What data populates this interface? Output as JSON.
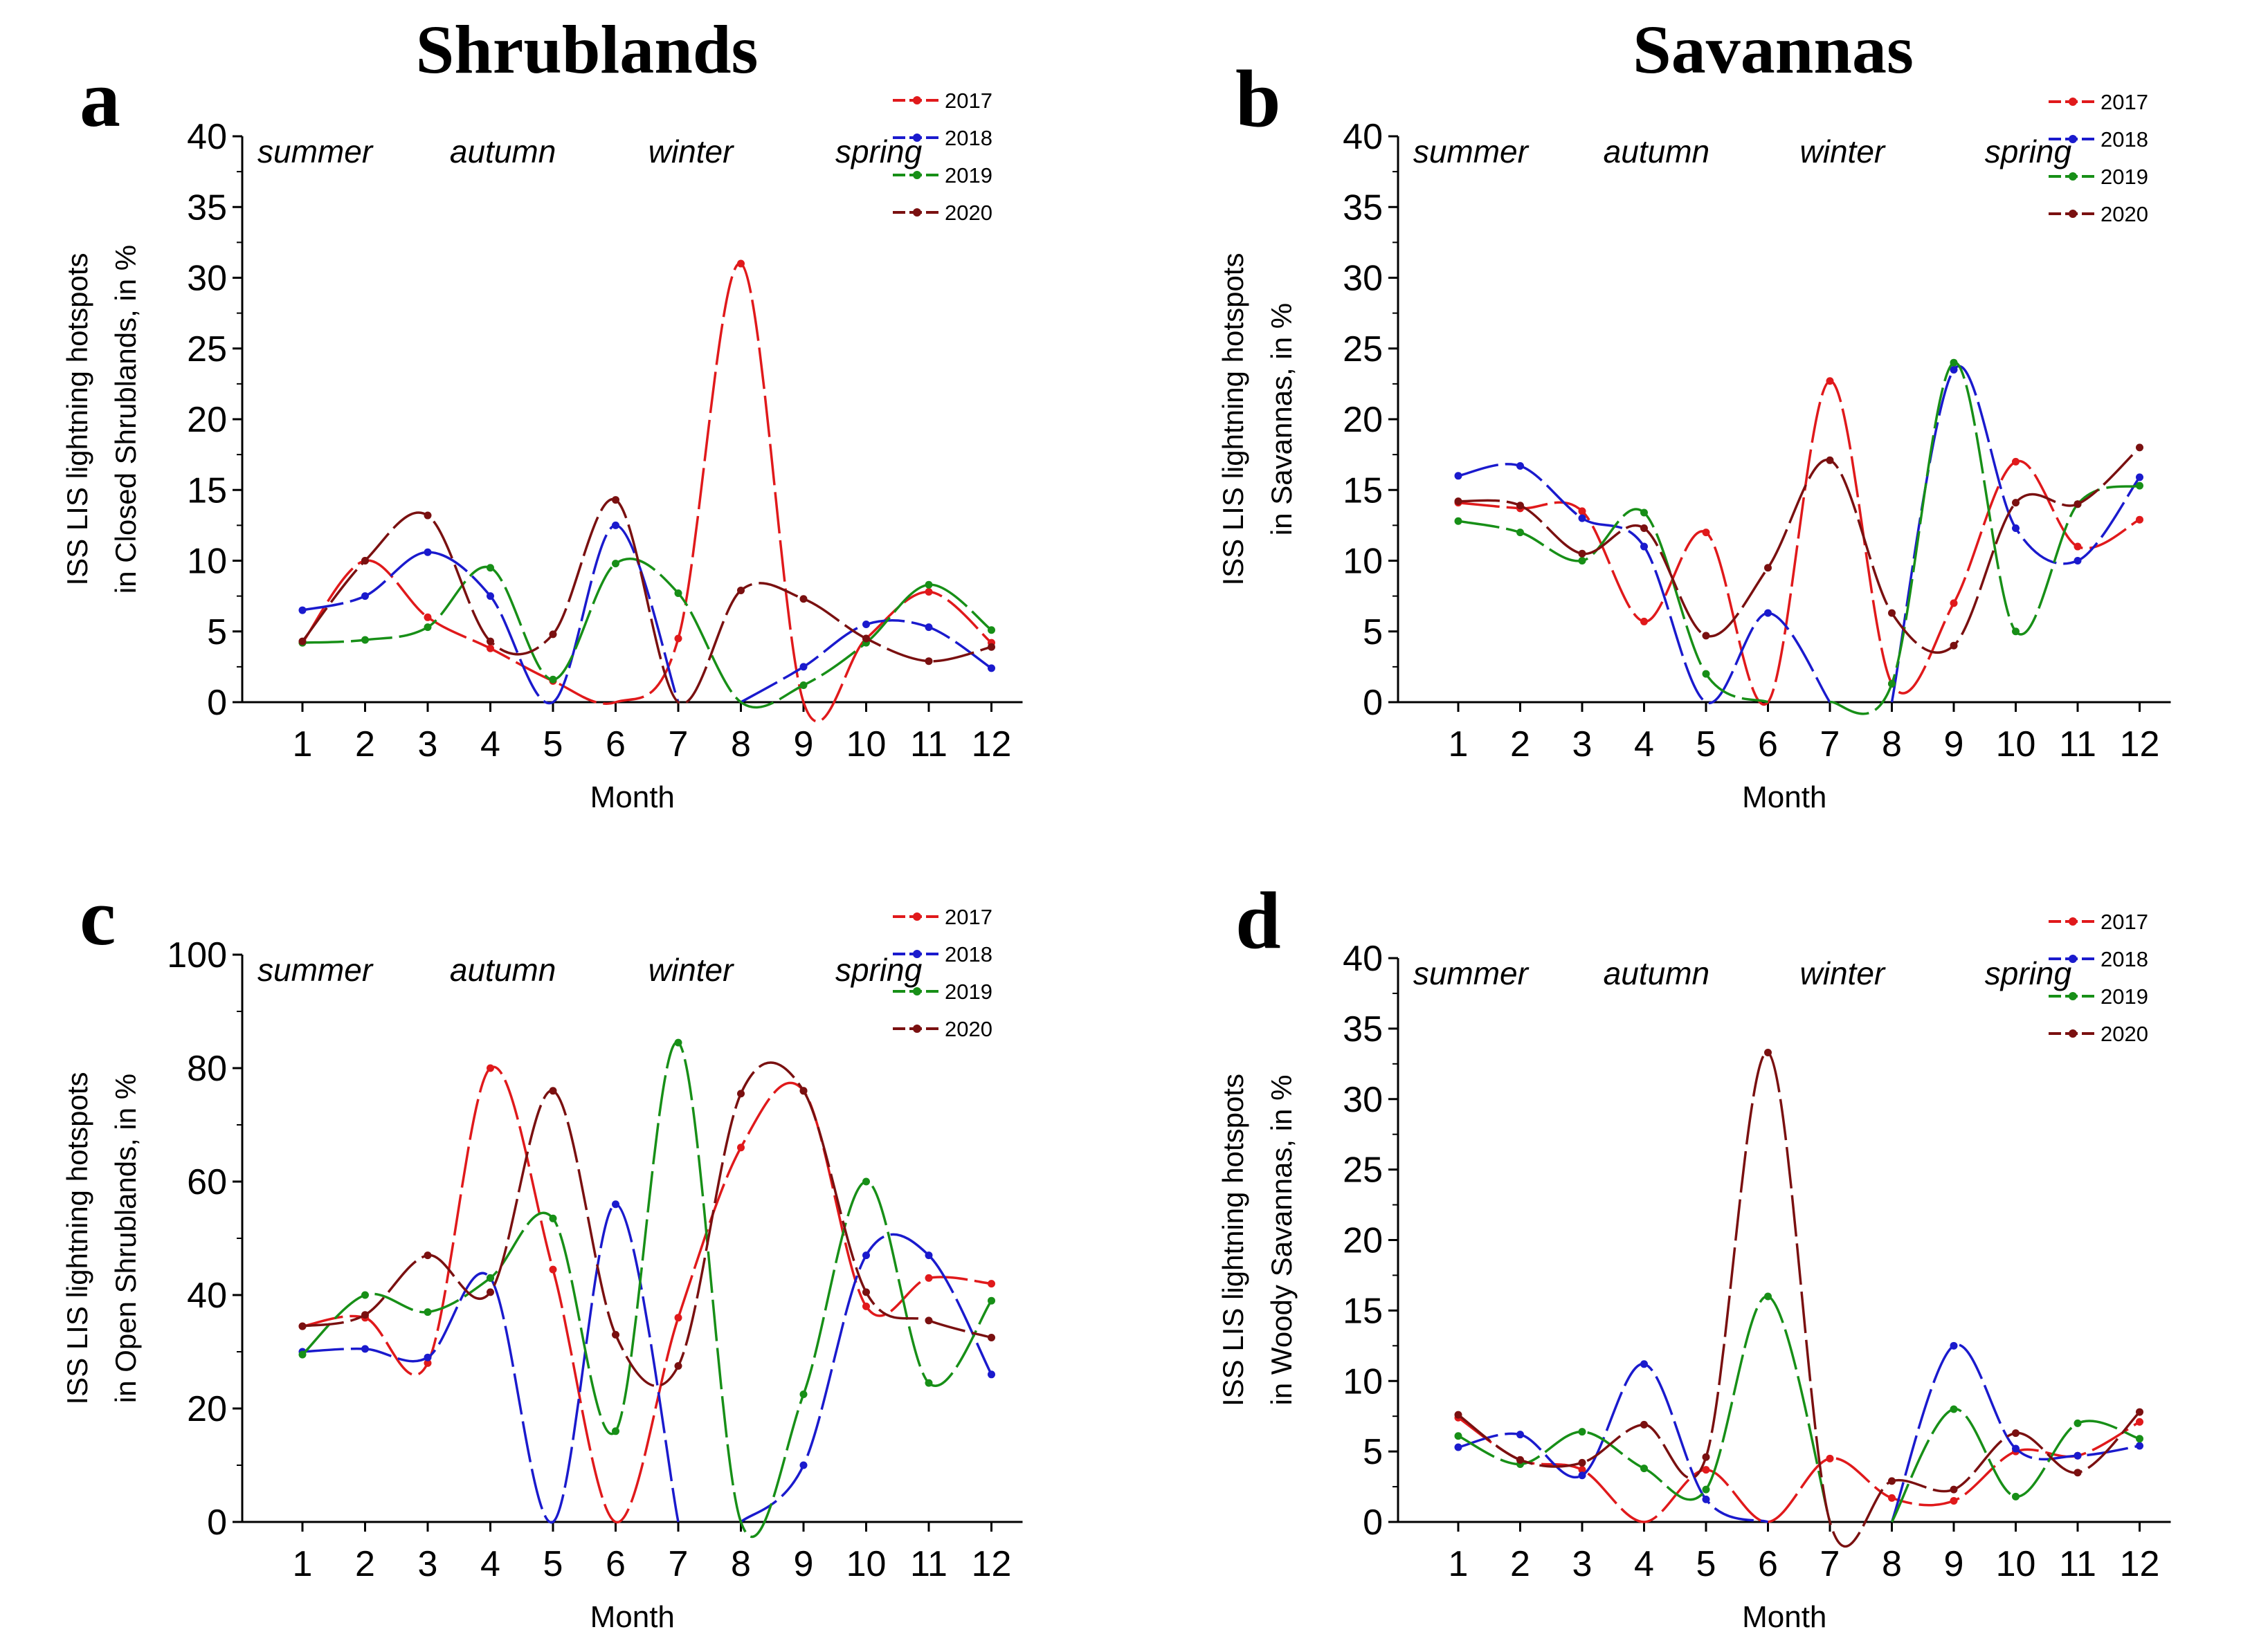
{
  "titles": {
    "left": "Shrublands",
    "right": "Savannas"
  },
  "colors": {
    "2017": "#e0191b",
    "2018": "#1a1acd",
    "2019": "#178f17",
    "2020": "#7a1010"
  },
  "chart_data": [
    {
      "type": "line",
      "panel": "a",
      "title": "",
      "xlabel": "Month",
      "ylabel_lines": [
        "ISS LIS lightning hotspots",
        "in Closed Shrublands, in %"
      ],
      "categories": [
        "1",
        "2",
        "3",
        "4",
        "5",
        "6",
        "7",
        "8",
        "9",
        "10",
        "11",
        "12"
      ],
      "ylim": [
        0,
        40
      ],
      "yticks": [
        "0",
        "5",
        "10",
        "15",
        "20",
        "25",
        "30",
        "35",
        "40"
      ],
      "seasons": [
        "summer",
        "autumn",
        "winter",
        "spring"
      ],
      "legend_position": "top-right",
      "series": [
        {
          "name": "2017",
          "values": [
            4.2,
            10,
            6,
            3.8,
            1.5,
            0,
            4.5,
            31,
            0,
            4.5,
            7.8,
            4.2
          ]
        },
        {
          "name": "2018",
          "values": [
            6.5,
            7.5,
            10.6,
            7.5,
            0,
            12.5,
            0,
            0,
            2.5,
            5.5,
            5.3,
            2.4
          ]
        },
        {
          "name": "2019",
          "values": [
            4.2,
            4.4,
            5.3,
            9.5,
            1.6,
            9.8,
            7.7,
            0,
            1.2,
            4.2,
            8.3,
            5.1
          ]
        },
        {
          "name": "2020",
          "values": [
            4.3,
            10,
            13.2,
            4.3,
            4.8,
            14.3,
            0,
            7.9,
            7.3,
            4.5,
            2.9,
            3.9
          ]
        }
      ]
    },
    {
      "type": "line",
      "panel": "b",
      "title": "",
      "xlabel": "Month",
      "ylabel_lines": [
        "ISS LIS lightning hotspots",
        "in Savannas, in %"
      ],
      "categories": [
        "1",
        "2",
        "3",
        "4",
        "5",
        "6",
        "7",
        "8",
        "9",
        "10",
        "11",
        "12"
      ],
      "ylim": [
        0,
        40
      ],
      "yticks": [
        "0",
        "5",
        "10",
        "15",
        "20",
        "25",
        "30",
        "35",
        "40"
      ],
      "seasons": [
        "summer",
        "autumn",
        "winter",
        "spring"
      ],
      "legend_position": "top-right",
      "series": [
        {
          "name": "2017",
          "values": [
            14.1,
            13.7,
            13.5,
            5.7,
            12,
            0,
            22.7,
            1.3,
            7,
            17,
            11,
            12.9
          ]
        },
        {
          "name": "2018",
          "values": [
            16,
            16.7,
            13,
            11,
            0,
            6.3,
            0,
            0,
            23.5,
            12.3,
            10,
            15.9
          ]
        },
        {
          "name": "2019",
          "values": [
            12.8,
            12,
            10,
            13.4,
            2,
            0,
            0,
            1.3,
            24,
            5,
            14,
            15.3
          ]
        },
        {
          "name": "2020",
          "values": [
            14.2,
            13.9,
            10.5,
            12.3,
            4.7,
            9.5,
            17.1,
            6.3,
            4,
            14.1,
            14,
            18
          ]
        }
      ]
    },
    {
      "type": "line",
      "panel": "c",
      "title": "",
      "xlabel": "Month",
      "ylabel_lines": [
        "ISS LIS lightning hotspots",
        "in Open Shrublands, in %"
      ],
      "categories": [
        "1",
        "2",
        "3",
        "4",
        "5",
        "6",
        "7",
        "8",
        "9",
        "10",
        "11",
        "12"
      ],
      "ylim": [
        0,
        100
      ],
      "yticks": [
        "0",
        "20",
        "40",
        "60",
        "80",
        "100"
      ],
      "seasons": [
        "summer",
        "autumn",
        "winter",
        "spring"
      ],
      "legend_position": "top-right",
      "series": [
        {
          "name": "2017",
          "values": [
            34.5,
            36,
            28,
            80,
            44.5,
            0,
            36,
            66,
            76,
            38,
            43,
            42
          ]
        },
        {
          "name": "2018",
          "values": [
            30,
            30.5,
            29,
            43,
            0,
            56,
            0,
            0,
            10,
            47,
            47,
            26
          ]
        },
        {
          "name": "2019",
          "values": [
            29.5,
            40,
            37,
            43,
            53.5,
            16,
            84.5,
            0,
            22.5,
            60,
            24.5,
            39
          ]
        },
        {
          "name": "2020",
          "values": [
            34.5,
            36.5,
            47,
            40.5,
            76,
            33,
            27.5,
            75.5,
            76,
            40.5,
            35.5,
            32.5
          ]
        }
      ]
    },
    {
      "type": "line",
      "panel": "d",
      "title": "",
      "xlabel": "Month",
      "ylabel_lines": [
        "ISS LIS lightning hotspots",
        "in Woody Savannas, in %"
      ],
      "categories": [
        "1",
        "2",
        "3",
        "4",
        "5",
        "6",
        "7",
        "8",
        "9",
        "10",
        "11",
        "12"
      ],
      "ylim": [
        0,
        40
      ],
      "yticks": [
        "0",
        "5",
        "10",
        "15",
        "20",
        "25",
        "30",
        "35",
        "40"
      ],
      "seasons": [
        "summer",
        "autumn",
        "winter",
        "spring"
      ],
      "legend_position": "top-right",
      "series": [
        {
          "name": "2017",
          "values": [
            7.4,
            4.4,
            3.7,
            0,
            3.7,
            0,
            4.5,
            1.7,
            1.5,
            5,
            4.7,
            7.1
          ]
        },
        {
          "name": "2018",
          "values": [
            5.3,
            6.2,
            3.3,
            11.2,
            1.6,
            0,
            0,
            0,
            12.5,
            5.2,
            4.7,
            5.4
          ]
        },
        {
          "name": "2019",
          "values": [
            6.1,
            4.1,
            6.4,
            3.8,
            2.3,
            16,
            0,
            0,
            8,
            1.8,
            7,
            5.9
          ]
        },
        {
          "name": "2020",
          "values": [
            7.6,
            4.4,
            4.2,
            6.9,
            4.6,
            33.3,
            0,
            2.9,
            2.3,
            6.3,
            3.5,
            7.8
          ]
        }
      ]
    }
  ]
}
